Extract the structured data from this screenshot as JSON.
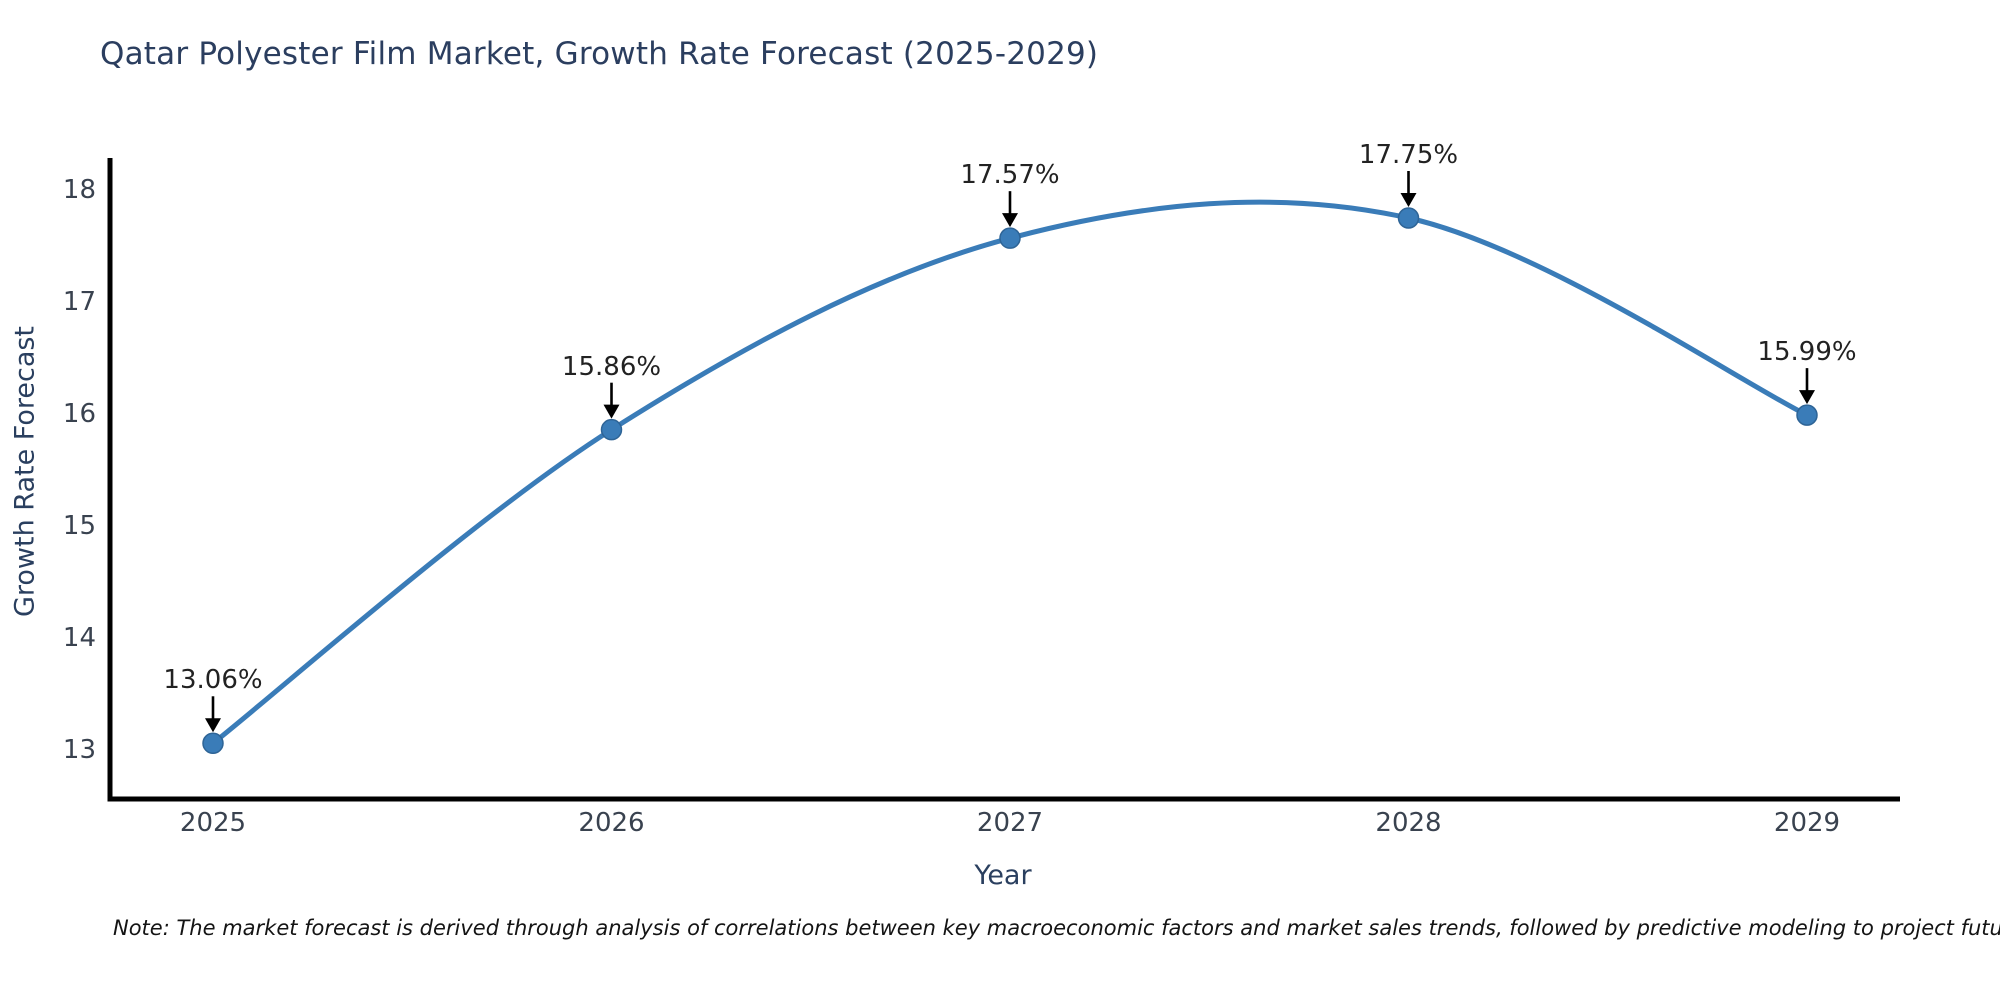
{
  "title": "Qatar Polyester Film Market, Growth Rate Forecast (2025-2029)",
  "note": "Note: The market forecast is derived through analysis of correlations between key macroeconomic factors and market sales trends, followed by predictive modeling to project future sales.",
  "chart_data": {
    "type": "line",
    "title": "Qatar Polyester Film Market, Growth Rate Forecast (2025-2029)",
    "xlabel": "Year",
    "ylabel": "Growth Rate Forecast",
    "x": [
      "2025",
      "2026",
      "2027",
      "2028",
      "2029"
    ],
    "series": [
      {
        "name": "Growth Rate Forecast",
        "values": [
          13.06,
          15.86,
          17.57,
          17.75,
          15.99
        ]
      }
    ],
    "point_labels": [
      "13.06%",
      "15.86%",
      "17.57%",
      "17.75%",
      "15.99%"
    ],
    "yticks": [
      13,
      14,
      15,
      16,
      17,
      18
    ],
    "ylim": [
      12.55,
      18.35
    ],
    "line_shape": "spline",
    "grid": false,
    "legend": "none",
    "colors": {
      "line": "#3a7cb8",
      "marker": "#3a7cb8",
      "marker_edge": "#2e6496",
      "axis": "#000000",
      "arrow": "#000000",
      "title_text": "#2b3e5f",
      "axis_title_text": "#2a3f5f",
      "tick_text": "#39424f",
      "annotation_text": "#222222"
    }
  }
}
